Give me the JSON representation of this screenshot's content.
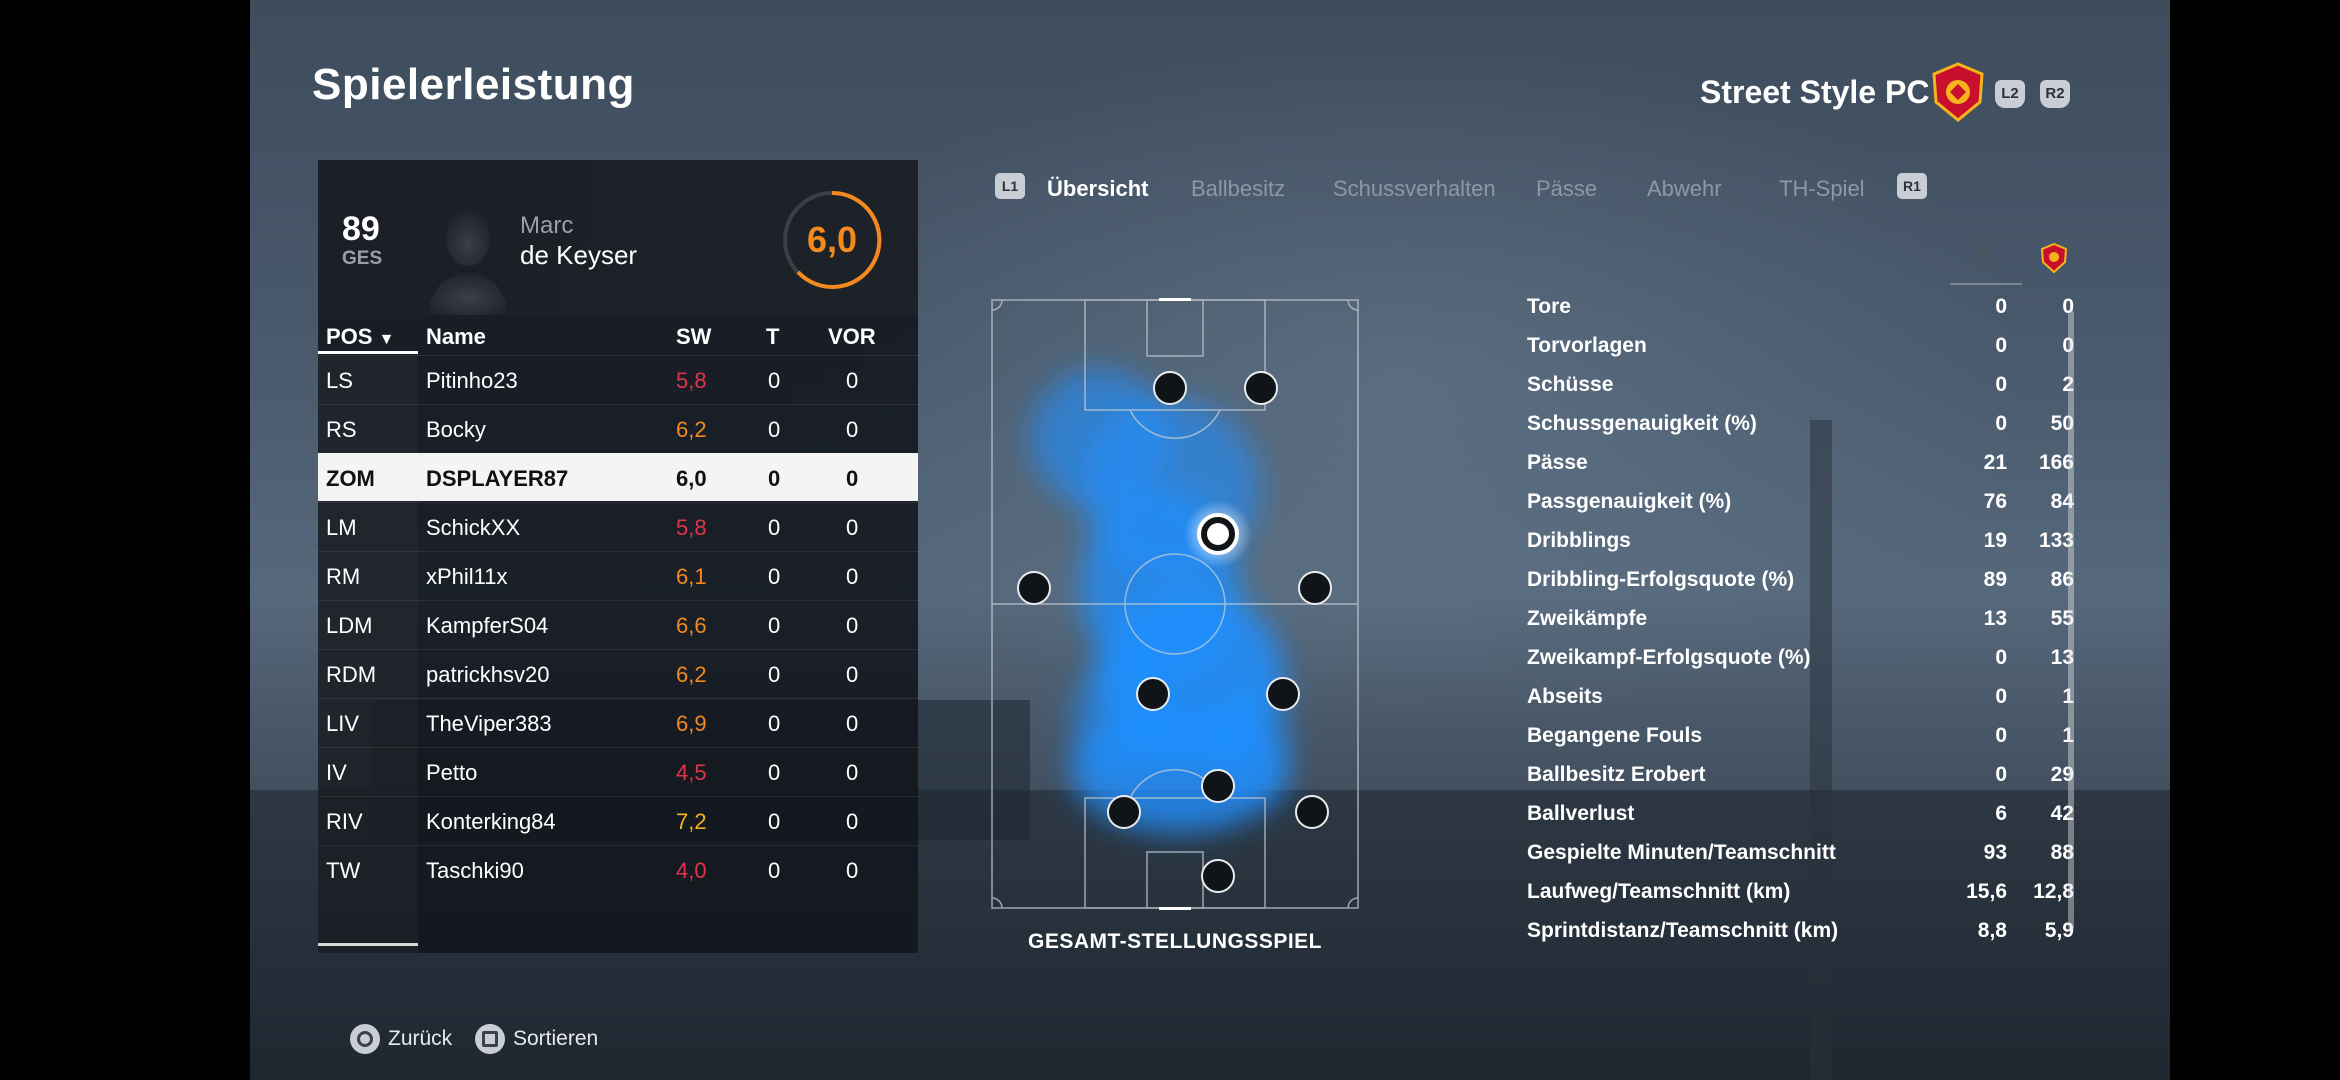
{
  "header": {
    "title": "Spielerleistung",
    "team_name": "Street Style PC",
    "l2": "L2",
    "r2": "R2"
  },
  "player": {
    "rating": "89",
    "rating_label": "GES",
    "first_name": "Marc",
    "last_name": "de Keyser",
    "match_rating": "6,0"
  },
  "table": {
    "columns": {
      "pos": "POS",
      "name": "Name",
      "sw": "SW",
      "t": "T",
      "vor": "VOR"
    },
    "rows": [
      {
        "pos": "LS",
        "name": "Pitinho23",
        "sw": "5,8",
        "t": "0",
        "vor": "0",
        "sw_color": "#e0344b"
      },
      {
        "pos": "RS",
        "name": "Bocky",
        "sw": "6,2",
        "t": "0",
        "vor": "0",
        "sw_color": "#f28a1e"
      },
      {
        "pos": "ZOM",
        "name": "DSPLAYER87",
        "sw": "6,0",
        "t": "0",
        "vor": "0",
        "sw_color": "#111111"
      },
      {
        "pos": "LM",
        "name": "SchickXX",
        "sw": "5,8",
        "t": "0",
        "vor": "0",
        "sw_color": "#e0344b"
      },
      {
        "pos": "RM",
        "name": "xPhil11x",
        "sw": "6,1",
        "t": "0",
        "vor": "0",
        "sw_color": "#f28a1e"
      },
      {
        "pos": "LDM",
        "name": "KampferS04",
        "sw": "6,6",
        "t": "0",
        "vor": "0",
        "sw_color": "#f28a1e"
      },
      {
        "pos": "RDM",
        "name": "patrickhsv20",
        "sw": "6,2",
        "t": "0",
        "vor": "0",
        "sw_color": "#f28a1e"
      },
      {
        "pos": "LIV",
        "name": "TheViper383",
        "sw": "6,9",
        "t": "0",
        "vor": "0",
        "sw_color": "#f28a1e"
      },
      {
        "pos": "IV",
        "name": "Petto",
        "sw": "4,5",
        "t": "0",
        "vor": "0",
        "sw_color": "#e0344b"
      },
      {
        "pos": "RIV",
        "name": "Konterking84",
        "sw": "7,2",
        "t": "0",
        "vor": "0",
        "sw_color": "#f5b31c"
      },
      {
        "pos": "TW",
        "name": "Taschki90",
        "sw": "4,0",
        "t": "0",
        "vor": "0",
        "sw_color": "#e0344b"
      }
    ]
  },
  "tabs": {
    "l1": "L1",
    "r1": "R1",
    "items": [
      "Übersicht",
      "Ballbesitz",
      "Schussverhalten",
      "Pässe",
      "Abwehr",
      "TH-Spiel"
    ]
  },
  "pitch_caption": "GESAMT-STELLUNGSSPIEL",
  "stats": [
    {
      "label": "Tore",
      "player": "0",
      "team": "0"
    },
    {
      "label": "Torvorlagen",
      "player": "0",
      "team": "0"
    },
    {
      "label": "Schüsse",
      "player": "0",
      "team": "2"
    },
    {
      "label": "Schussgenauigkeit (%)",
      "player": "0",
      "team": "50"
    },
    {
      "label": "Pässe",
      "player": "21",
      "team": "166"
    },
    {
      "label": "Passgenauigkeit (%)",
      "player": "76",
      "team": "84"
    },
    {
      "label": "Dribblings",
      "player": "19",
      "team": "133"
    },
    {
      "label": "Dribbling-Erfolgsquote (%)",
      "player": "89",
      "team": "86"
    },
    {
      "label": "Zweikämpfe",
      "player": "13",
      "team": "55"
    },
    {
      "label": "Zweikampf-Erfolgsquote (%)",
      "player": "0",
      "team": "13"
    },
    {
      "label": "Abseits",
      "player": "0",
      "team": "1"
    },
    {
      "label": "Begangene Fouls",
      "player": "0",
      "team": "1"
    },
    {
      "label": "Ballbesitz Erobert",
      "player": "0",
      "team": "29"
    },
    {
      "label": "Ballverlust",
      "player": "6",
      "team": "42"
    },
    {
      "label": "Gespielte Minuten/Teamschnitt",
      "player": "93",
      "team": "88"
    },
    {
      "label": "Laufweg/Teamschnitt (km)",
      "player": "15,6",
      "team": "12,8"
    },
    {
      "label": "Sprintdistanz/Teamschnitt (km)",
      "player": "8,8",
      "team": "5,9"
    }
  ],
  "footer": {
    "back": "Zurück",
    "sort": "Sortieren"
  },
  "colors": {
    "accent_orange": "#f28a1e",
    "low_red": "#e0344b",
    "heatmap_blue": "#1e8fff"
  }
}
